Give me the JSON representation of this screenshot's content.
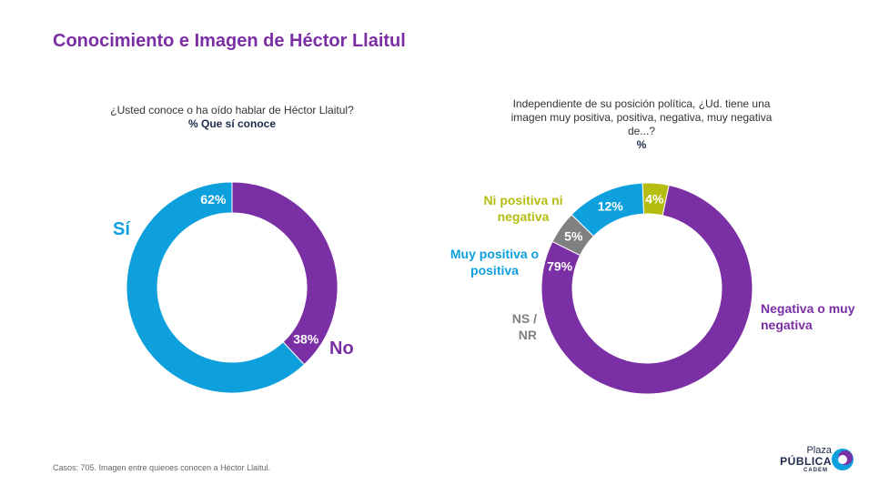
{
  "title": "Conocimiento e Imagen de Héctor Llaitul",
  "chart_data": [
    {
      "type": "pie",
      "question": "¿Usted conoce o ha oído hablar de Héctor Llaitul?",
      "subtitle": "% Que sí conoce",
      "slices": [
        {
          "label": "Sí",
          "value": 62,
          "value_label": "62%",
          "color": "#0ea0dc"
        },
        {
          "label": "No",
          "value": 38,
          "value_label": "38%",
          "color": "#7b2fa5"
        }
      ]
    },
    {
      "type": "pie",
      "question": "Independiente de su posición política, ¿Ud. tiene una imagen muy positiva, positiva, negativa, muy negativa de...?",
      "subtitle": "%",
      "slices": [
        {
          "label": "Negativa o muy negativa",
          "value": 79,
          "value_label": "79%",
          "color": "#7b2fa5"
        },
        {
          "label": "NS / NR",
          "value": 5,
          "value_label": "5%",
          "color": "#808080"
        },
        {
          "label": "Muy positiva o positiva",
          "value": 12,
          "value_label": "12%",
          "color": "#0ea0dc"
        },
        {
          "label": "Ni positiva ni negativa",
          "value": 4,
          "value_label": "4%",
          "color": "#b5be10"
        }
      ]
    }
  ],
  "footer": "Casos: 705. Imagen entre quienes conocen a Héctor Llaitul.",
  "logo": {
    "line1": "Plaza",
    "line2": "PÚBLICA",
    "line3": "CADEM",
    "icon": "speech-bubble-logo-icon"
  }
}
